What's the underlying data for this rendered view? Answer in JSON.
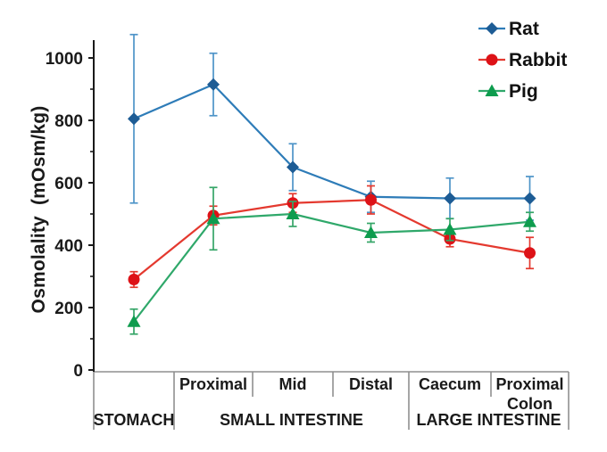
{
  "figure": {
    "background": "#ffffff",
    "axis_color": "#1a1a1a",
    "table_line_color": "#8f8f8f"
  },
  "chart_data": {
    "type": "line",
    "title": "",
    "ylabel": "Osmolality  (mOsm/kg)",
    "xlabel": "",
    "grid": "off",
    "legend_position": "top-right",
    "y_axis": {
      "min": 0,
      "max": 1000,
      "major_tick_step": 200,
      "minor_tick_step": 100,
      "tick_labels": [
        "0",
        "200",
        "400",
        "600",
        "800",
        "1000"
      ]
    },
    "categories": [
      "Stomach",
      "Proximal",
      "Mid",
      "Distal",
      "Caecum",
      "Proximal Colon"
    ],
    "x_axis_table": {
      "segment_labels": [
        [],
        [
          "Proximal"
        ],
        [
          "Mid"
        ],
        [
          "Distal"
        ],
        [
          "Caecum"
        ],
        [
          "Proximal",
          "Colon"
        ]
      ],
      "group_labels": [
        {
          "label": "STOMACH",
          "span": [
            0,
            1
          ]
        },
        {
          "label": "SMALL INTESTINE",
          "span": [
            1,
            4
          ]
        },
        {
          "label": "LARGE INTESTINE",
          "span": [
            4,
            6
          ]
        }
      ]
    },
    "series": [
      {
        "name": "Rat",
        "marker": "diamond",
        "line_color": "#2E7CB8",
        "marker_color": "#1D5C95",
        "error_color": "#4E94C8",
        "values": [
          805,
          915,
          650,
          555,
          550,
          550
        ],
        "errors": [
          270,
          100,
          75,
          50,
          65,
          70
        ]
      },
      {
        "name": "Rabbit",
        "marker": "circle",
        "line_color": "#E4392F",
        "marker_color": "#DD1217",
        "error_color": "#E4392F",
        "values": [
          290,
          495,
          535,
          545,
          420,
          375
        ],
        "errors": [
          25,
          30,
          30,
          45,
          25,
          50
        ]
      },
      {
        "name": "Pig",
        "marker": "triangle",
        "line_color": "#2FA86A",
        "marker_color": "#0E9C4E",
        "error_color": "#35A567",
        "values": [
          155,
          485,
          500,
          440,
          450,
          475
        ],
        "errors": [
          40,
          100,
          40,
          30,
          35,
          30
        ]
      }
    ]
  }
}
